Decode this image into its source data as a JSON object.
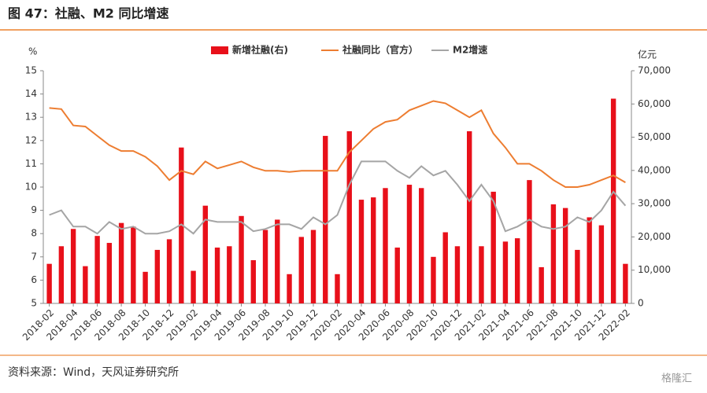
{
  "title": "图 47：社融、M2 同比增速",
  "source": "资料来源：Wind，天风证券研究所",
  "watermark": "格隆汇",
  "chart_data": {
    "type": "bar-line",
    "y_unit": "%",
    "y2_unit": "亿元",
    "categories": [
      "2018-02",
      null,
      "2018-04",
      null,
      "2018-06",
      null,
      "2018-08",
      null,
      "2018-10",
      null,
      "2018-12",
      null,
      "2019-02",
      null,
      "2019-04",
      null,
      "2019-06",
      null,
      "2019-08",
      null,
      "2019-10",
      null,
      "2019-12",
      null,
      "2020-02",
      null,
      "2020-04",
      null,
      "2020-06",
      null,
      "2020-08",
      null,
      "2020-10",
      null,
      "2020-12",
      null,
      "2021-02",
      null,
      "2021-04",
      null,
      "2021-06",
      null,
      "2021-08",
      null,
      "2021-10",
      null,
      "2021-12",
      null,
      "2022-02"
    ],
    "series": [
      {
        "name": "新增社融(右)",
        "type": "bar",
        "axis": "y2",
        "color": "#e8101a",
        "values": [
          11900,
          17200,
          22400,
          11200,
          20300,
          18200,
          24200,
          23100,
          9500,
          16100,
          19300,
          46900,
          9800,
          29400,
          16800,
          17200,
          26300,
          13000,
          22100,
          25200,
          8800,
          20000,
          22100,
          50400,
          8800,
          51800,
          31200,
          31900,
          34700,
          16800,
          35700,
          34700,
          14000,
          21400,
          17200,
          51800,
          17200,
          33600,
          18600,
          19600,
          37100,
          10900,
          29800,
          28700,
          16100,
          25900,
          23500,
          61600,
          11900
        ]
      },
      {
        "name": "社融同比（官方）",
        "type": "line",
        "axis": "y",
        "color": "#ed7d31",
        "values": [
          13.4,
          13.35,
          12.65,
          12.6,
          12.2,
          11.8,
          11.55,
          11.55,
          11.3,
          10.9,
          10.3,
          10.7,
          10.55,
          11.1,
          10.8,
          10.95,
          11.1,
          10.85,
          10.7,
          10.7,
          10.65,
          10.7,
          10.7,
          10.7,
          10.7,
          11.5,
          12.0,
          12.5,
          12.8,
          12.9,
          13.3,
          13.5,
          13.7,
          13.6,
          13.3,
          13.0,
          13.3,
          12.3,
          11.7,
          11.0,
          11.0,
          10.7,
          10.3,
          10.0,
          10.0,
          10.1,
          10.3,
          10.5,
          10.2
        ]
      },
      {
        "name": "M2增速",
        "type": "line",
        "axis": "y",
        "color": "#a5a5a5",
        "values": [
          8.8,
          9.0,
          8.3,
          8.3,
          8.0,
          8.5,
          8.2,
          8.3,
          8.0,
          8.0,
          8.1,
          8.4,
          8.0,
          8.6,
          8.5,
          8.5,
          8.5,
          8.1,
          8.2,
          8.4,
          8.4,
          8.2,
          8.7,
          8.4,
          8.8,
          10.1,
          11.1,
          11.1,
          11.1,
          10.7,
          10.4,
          10.9,
          10.5,
          10.7,
          10.1,
          9.4,
          10.1,
          9.4,
          8.1,
          8.3,
          8.6,
          8.3,
          8.2,
          8.3,
          8.7,
          8.5,
          9.0,
          9.8,
          9.2
        ]
      }
    ],
    "ylim": [
      5,
      15
    ],
    "yticks": [
      5,
      6,
      7,
      8,
      9,
      10,
      11,
      12,
      13,
      14,
      15
    ],
    "y2lim": [
      0,
      70000
    ],
    "y2ticks": [
      0,
      {
        "value": 10000,
        "label": "10,000"
      },
      {
        "value": 20000,
        "label": "20,000"
      },
      {
        "value": 30000,
        "label": "30,000"
      },
      {
        "value": 40000,
        "label": "40,000"
      },
      {
        "value": 50000,
        "label": "50,000"
      },
      {
        "value": 60000,
        "label": "60,000"
      },
      {
        "value": 70000,
        "label": "70,000"
      }
    ]
  }
}
